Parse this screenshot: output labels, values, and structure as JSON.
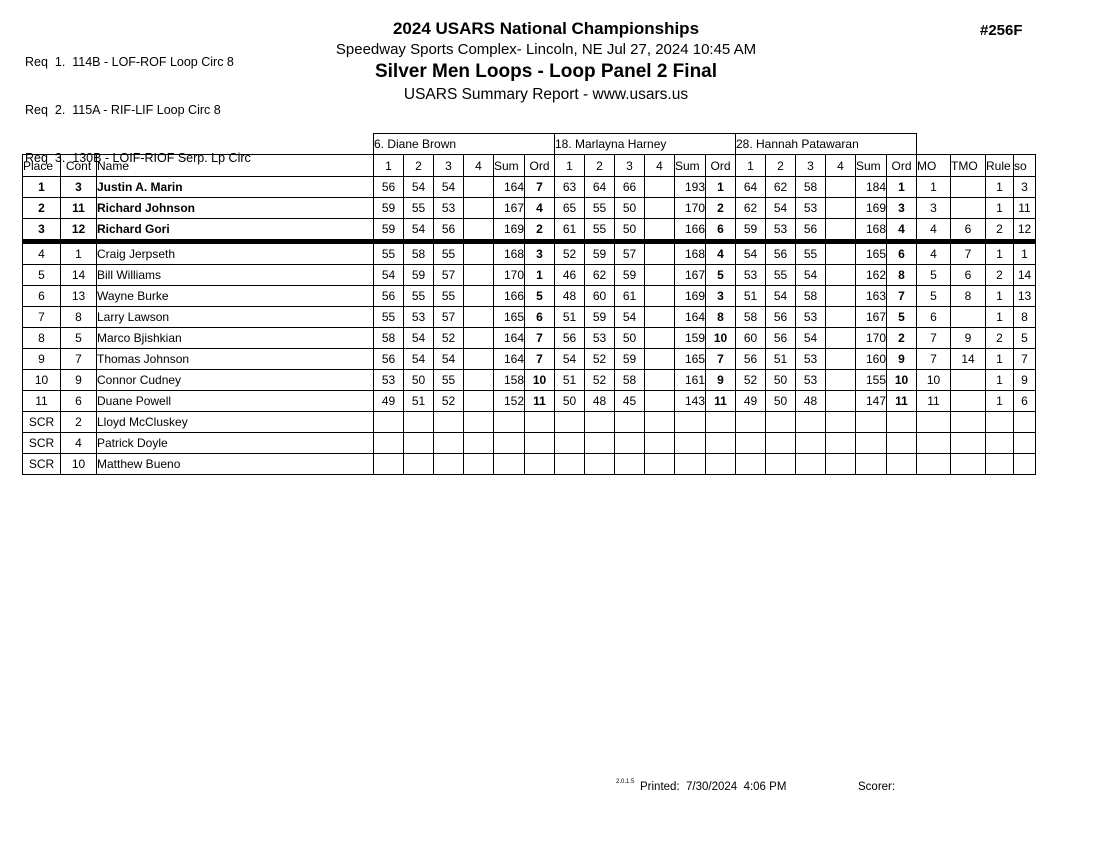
{
  "header": {
    "req_lines": [
      "Req  1.  114B - LOF-ROF Loop Circ 8",
      "Req  2.  115A - RIF-LIF Loop Circ 8",
      "Req  3.  130B - LOIF-RIOF Serp. Lp Circ"
    ],
    "title": "2024 USARS National Championships",
    "venue_datetime": "Speedway Sports Complex- Lincoln, NE  Jul 27, 2024  10:45 AM",
    "event_title": "Silver Men Loops - Loop Panel 2 Final",
    "report_subtitle": "USARS Summary Report - www.usars.us",
    "event_number": "#256F"
  },
  "table": {
    "corner_headers": [
      "Place",
      "Cont",
      "Name"
    ],
    "judges": [
      {
        "name": "6.  Diane Brown"
      },
      {
        "name": "18.  Marlayna Harney"
      },
      {
        "name": "28.  Hannah Patawaran"
      }
    ],
    "judge_subheaders": [
      "1",
      "2",
      "3",
      "4",
      "Sum",
      "Ord"
    ],
    "tail_headers": [
      "MO",
      "TMO",
      "Rule",
      "so"
    ],
    "rows": [
      {
        "place": "1",
        "cont": "3",
        "name": "Justin A. Marin",
        "bold": true,
        "panels": [
          [
            "56",
            "54",
            "54",
            "",
            "164",
            "7"
          ],
          [
            "63",
            "64",
            "66",
            "",
            "193",
            "1"
          ],
          [
            "64",
            "62",
            "58",
            "",
            "184",
            "1"
          ]
        ],
        "tail": [
          "1",
          "",
          "1",
          "3"
        ]
      },
      {
        "place": "2",
        "cont": "11",
        "name": "Richard Johnson",
        "bold": true,
        "panels": [
          [
            "59",
            "55",
            "53",
            "",
            "167",
            "4"
          ],
          [
            "65",
            "55",
            "50",
            "",
            "170",
            "2"
          ],
          [
            "62",
            "54",
            "53",
            "",
            "169",
            "3"
          ]
        ],
        "tail": [
          "3",
          "",
          "1",
          "11"
        ]
      },
      {
        "place": "3",
        "cont": "12",
        "name": "Richard Gori",
        "bold": true,
        "divider_below": true,
        "panels": [
          [
            "59",
            "54",
            "56",
            "",
            "169",
            "2"
          ],
          [
            "61",
            "55",
            "50",
            "",
            "166",
            "6"
          ],
          [
            "59",
            "53",
            "56",
            "",
            "168",
            "4"
          ]
        ],
        "tail": [
          "4",
          "6",
          "2",
          "12"
        ]
      },
      {
        "place": "4",
        "cont": "1",
        "name": "Craig Jerpseth",
        "panels": [
          [
            "55",
            "58",
            "55",
            "",
            "168",
            "3"
          ],
          [
            "52",
            "59",
            "57",
            "",
            "168",
            "4"
          ],
          [
            "54",
            "56",
            "55",
            "",
            "165",
            "6"
          ]
        ],
        "tail": [
          "4",
          "7",
          "1",
          "1"
        ]
      },
      {
        "place": "5",
        "cont": "14",
        "name": "Bill Williams",
        "panels": [
          [
            "54",
            "59",
            "57",
            "",
            "170",
            "1"
          ],
          [
            "46",
            "62",
            "59",
            "",
            "167",
            "5"
          ],
          [
            "53",
            "55",
            "54",
            "",
            "162",
            "8"
          ]
        ],
        "tail": [
          "5",
          "6",
          "2",
          "14"
        ]
      },
      {
        "place": "6",
        "cont": "13",
        "name": "Wayne Burke",
        "panels": [
          [
            "56",
            "55",
            "55",
            "",
            "166",
            "5"
          ],
          [
            "48",
            "60",
            "61",
            "",
            "169",
            "3"
          ],
          [
            "51",
            "54",
            "58",
            "",
            "163",
            "7"
          ]
        ],
        "tail": [
          "5",
          "8",
          "1",
          "13"
        ]
      },
      {
        "place": "7",
        "cont": "8",
        "name": "Larry Lawson",
        "panels": [
          [
            "55",
            "53",
            "57",
            "",
            "165",
            "6"
          ],
          [
            "51",
            "59",
            "54",
            "",
            "164",
            "8"
          ],
          [
            "58",
            "56",
            "53",
            "",
            "167",
            "5"
          ]
        ],
        "tail": [
          "6",
          "",
          "1",
          "8"
        ]
      },
      {
        "place": "8",
        "cont": "5",
        "name": "Marco Bjishkian",
        "panels": [
          [
            "58",
            "54",
            "52",
            "",
            "164",
            "7"
          ],
          [
            "56",
            "53",
            "50",
            "",
            "159",
            "10"
          ],
          [
            "60",
            "56",
            "54",
            "",
            "170",
            "2"
          ]
        ],
        "tail": [
          "7",
          "9",
          "2",
          "5"
        ]
      },
      {
        "place": "9",
        "cont": "7",
        "name": "Thomas Johnson",
        "panels": [
          [
            "56",
            "54",
            "54",
            "",
            "164",
            "7"
          ],
          [
            "54",
            "52",
            "59",
            "",
            "165",
            "7"
          ],
          [
            "56",
            "51",
            "53",
            "",
            "160",
            "9"
          ]
        ],
        "tail": [
          "7",
          "14",
          "1",
          "7"
        ]
      },
      {
        "place": "10",
        "cont": "9",
        "name": "Connor Cudney",
        "panels": [
          [
            "53",
            "50",
            "55",
            "",
            "158",
            "10"
          ],
          [
            "51",
            "52",
            "58",
            "",
            "161",
            "9"
          ],
          [
            "52",
            "50",
            "53",
            "",
            "155",
            "10"
          ]
        ],
        "tail": [
          "10",
          "",
          "1",
          "9"
        ]
      },
      {
        "place": "11",
        "cont": "6",
        "name": "Duane Powell",
        "panels": [
          [
            "49",
            "51",
            "52",
            "",
            "152",
            "11"
          ],
          [
            "50",
            "48",
            "45",
            "",
            "143",
            "11"
          ],
          [
            "49",
            "50",
            "48",
            "",
            "147",
            "11"
          ]
        ],
        "tail": [
          "11",
          "",
          "1",
          "6"
        ]
      },
      {
        "place": "SCR",
        "cont": "2",
        "name": "Lloyd McCluskey",
        "panels": [
          [
            "",
            "",
            "",
            "",
            "",
            ""
          ],
          [
            "",
            "",
            "",
            "",
            "",
            ""
          ],
          [
            "",
            "",
            "",
            "",
            "",
            ""
          ]
        ],
        "tail": [
          "",
          "",
          "",
          ""
        ]
      },
      {
        "place": "SCR",
        "cont": "4",
        "name": "Patrick Doyle",
        "panels": [
          [
            "",
            "",
            "",
            "",
            "",
            ""
          ],
          [
            "",
            "",
            "",
            "",
            "",
            ""
          ],
          [
            "",
            "",
            "",
            "",
            "",
            ""
          ]
        ],
        "tail": [
          "",
          "",
          "",
          ""
        ]
      },
      {
        "place": "SCR",
        "cont": "10",
        "name": "Matthew Bueno",
        "panels": [
          [
            "",
            "",
            "",
            "",
            "",
            ""
          ],
          [
            "",
            "",
            "",
            "",
            "",
            ""
          ],
          [
            "",
            "",
            "",
            "",
            "",
            ""
          ]
        ],
        "tail": [
          "",
          "",
          "",
          ""
        ]
      }
    ]
  },
  "footer": {
    "version_superscript": "2.0.1.5",
    "printed": "Printed:  7/30/2024  4:06 PM",
    "scorer_label": "Scorer:"
  }
}
